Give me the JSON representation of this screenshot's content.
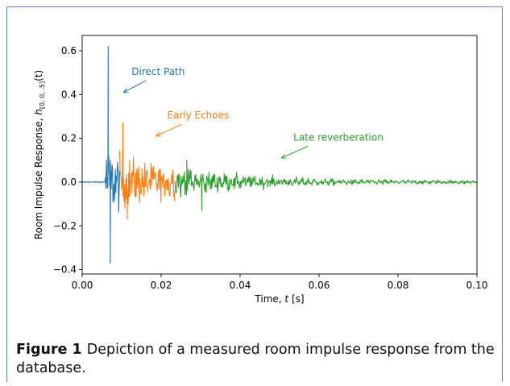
{
  "figure": {
    "label": "Figure 1",
    "caption": "Depiction of a measured room impulse response from the database."
  },
  "chart_data": {
    "type": "line",
    "xlabel_prefix": "Time, ",
    "xlabel_var": "t",
    "xlabel_suffix": " [s]",
    "ylabel_prefix": "Room Impulse Response, ",
    "ylabel_var": "h",
    "ylabel_sub": "[0, 0, .5]",
    "ylabel_suffix": "(t)",
    "xlim": [
      0.0,
      0.1
    ],
    "ylim": [
      -0.42,
      0.67
    ],
    "x_ticks": [
      0.0,
      0.02,
      0.04,
      0.06,
      0.08,
      0.1
    ],
    "x_tick_labels": [
      "0.00",
      "0.02",
      "0.04",
      "0.06",
      "0.08",
      "0.10"
    ],
    "y_ticks": [
      -0.4,
      -0.2,
      0.0,
      0.2,
      0.4,
      0.6
    ],
    "y_tick_labels": [
      "−0.4",
      "−0.2",
      "0.0",
      "0.2",
      "0.4",
      "0.6"
    ],
    "grid": false,
    "series": [
      {
        "name": "Direct Path",
        "color": "#1f77b4",
        "x_range": [
          0.0,
          0.0095
        ],
        "peak": {
          "x": 0.0066,
          "y": 0.62
        },
        "trough": {
          "x": 0.0071,
          "y": -0.37
        }
      },
      {
        "name": "Early Echoes",
        "color": "#ff7f0e",
        "x_range": [
          0.0095,
          0.0235
        ],
        "peak": {
          "x": 0.0103,
          "y": 0.27
        },
        "trough": {
          "x": 0.0114,
          "y": -0.17
        }
      },
      {
        "name": "Late reverberation",
        "color": "#2ca02c",
        "x_range": [
          0.0235,
          0.1
        ],
        "peak": {
          "x": 0.0265,
          "y": 0.1
        },
        "trough": {
          "x": 0.0303,
          "y": -0.13
        }
      }
    ],
    "annotations": [
      {
        "text": "Direct Path",
        "color": "#1f77b4",
        "text_at": [
          0.0125,
          0.49
        ],
        "arrow_to": [
          0.0105,
          0.41
        ]
      },
      {
        "text": "Early Echoes",
        "color": "#ff7f0e",
        "text_at": [
          0.0215,
          0.29
        ],
        "arrow_to": [
          0.0187,
          0.21
        ]
      },
      {
        "text": "Late reverberation",
        "color": "#2ca02c",
        "text_at": [
          0.0535,
          0.19
        ],
        "arrow_to": [
          0.0505,
          0.11
        ]
      }
    ]
  }
}
